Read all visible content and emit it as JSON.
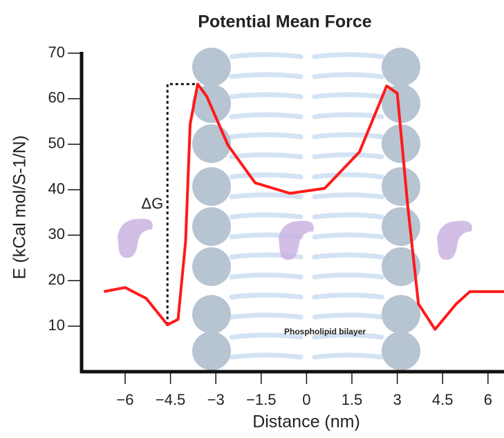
{
  "chart_data": {
    "type": "line",
    "title": "Potential Mean Force",
    "x_label": "Distance (nm)",
    "y_label": "E (kCal mol/S-1/N)",
    "xlim": [
      -7.44,
      6.53
    ],
    "ylim": [
      0,
      70
    ],
    "xticks": [
      {
        "value": -6,
        "label": "−6"
      },
      {
        "value": -4.5,
        "label": "−4.5"
      },
      {
        "value": -3,
        "label": "−3"
      },
      {
        "value": -1.5,
        "label": "−1.5"
      },
      0,
      1.5,
      3,
      4.5,
      6
    ],
    "yticks": [
      10,
      20,
      30,
      40,
      50,
      60,
      70
    ],
    "series": [
      {
        "color": "#ff1a1a",
        "x": [
          -6.7,
          -6.0,
          -5.3,
          -4.6,
          -4.25,
          -4.0,
          -3.85,
          -3.6,
          -3.3,
          -2.6,
          -1.7,
          -0.55,
          0.6,
          1.75,
          2.65,
          3.0,
          3.35,
          3.7,
          4.25,
          4.95,
          5.4,
          6.53
        ],
        "values": [
          17.6,
          18.5,
          16.1,
          10.3,
          11.5,
          28.6,
          54.4,
          63.2,
          60.5,
          49.8,
          41.5,
          39.2,
          40.3,
          48.3,
          62.8,
          61.2,
          36.2,
          14.9,
          9.3,
          14.9,
          17.6,
          17.6
        ]
      }
    ],
    "annotations": [
      {
        "text": "ΔG",
        "x": -4.6,
        "y": 10.3,
        "x2": -3.6,
        "y2": 63.2
      },
      {
        "text": "Phospholipid bilayer"
      }
    ]
  }
}
